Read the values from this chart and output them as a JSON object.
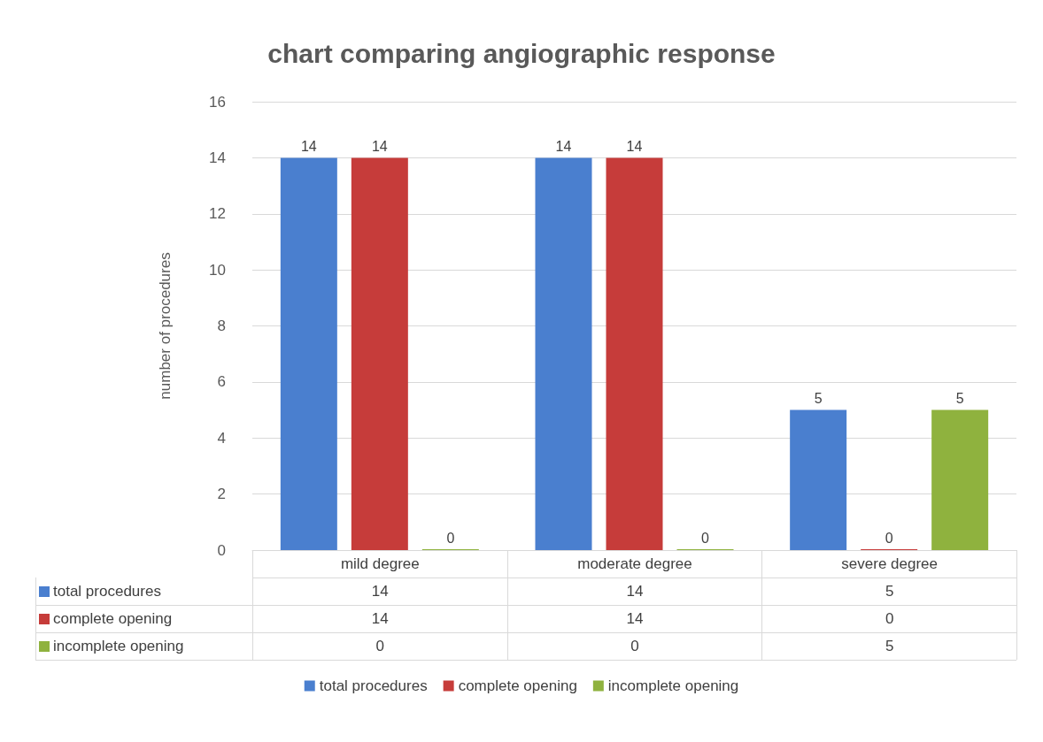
{
  "chart_data": {
    "type": "bar",
    "title": "chart comparing angiographic response",
    "ylabel": "number of procedures",
    "categories": [
      "mild degree",
      "moderate degree",
      "severe degree"
    ],
    "series": [
      {
        "name": "total procedures",
        "color": "#4a7fcf",
        "values": [
          14,
          14,
          5
        ],
        "value_labels": [
          "14",
          "14",
          "5"
        ]
      },
      {
        "name": "complete opening",
        "color": "#c63c3a",
        "values": [
          14,
          14,
          0
        ],
        "value_labels": [
          "14",
          "14",
          "0"
        ]
      },
      {
        "name": "incomplete opening",
        "color": "#8fb23e",
        "values": [
          0,
          0,
          5
        ],
        "value_labels": [
          "0",
          "0",
          "5"
        ]
      }
    ],
    "annotations": [
      "14",
      "14",
      "5",
      "14",
      "14",
      "0",
      "0",
      "0",
      "5"
    ],
    "ylim": [
      0,
      16
    ],
    "yticks": [
      0,
      2,
      4,
      6,
      8,
      10,
      12,
      14,
      16
    ],
    "grid": "y",
    "legend": "bottom"
  }
}
